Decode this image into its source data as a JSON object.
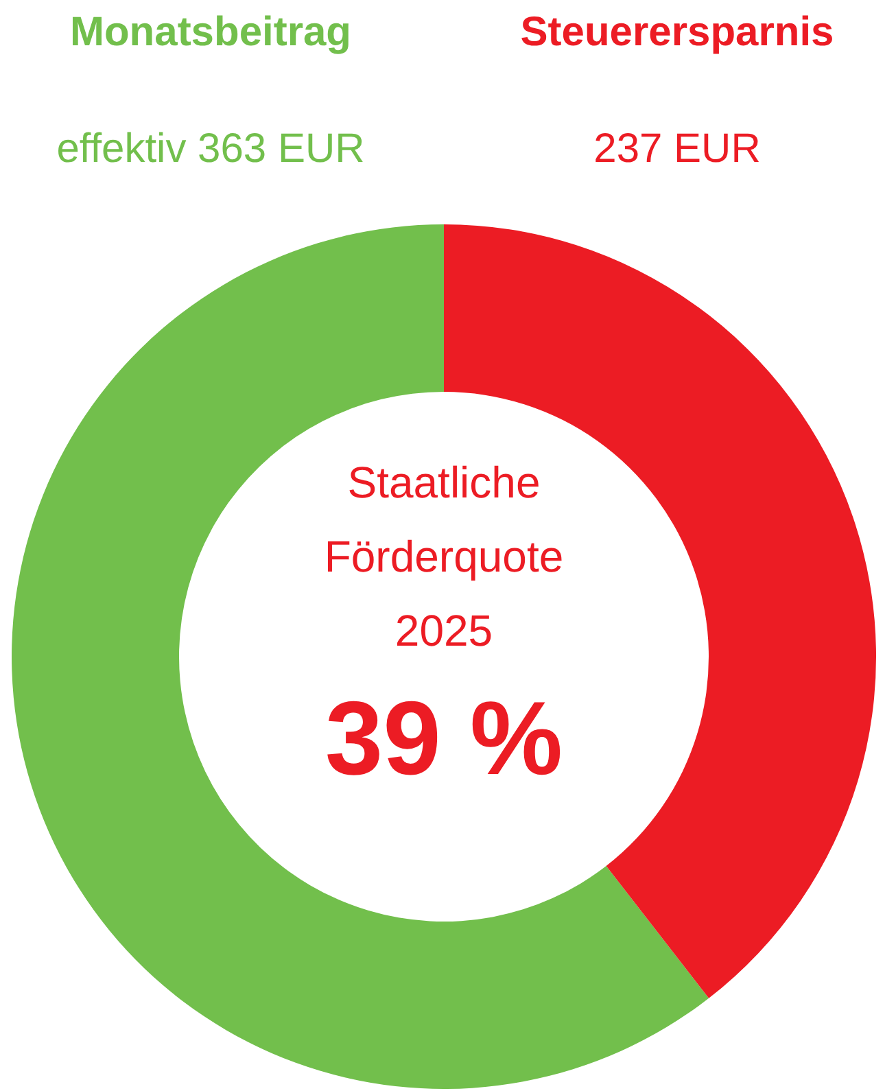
{
  "chart_data": {
    "type": "donut",
    "categories": [
      "Monatsbeitrag",
      "Steuerersparnis"
    ],
    "values": [
      363,
      237
    ],
    "colors": [
      "#72bf4c",
      "#ec1c24"
    ],
    "value_labels": [
      "effektiv 363 EUR",
      "237 EUR"
    ],
    "annotations": [
      "Staatliche\nFörderquote\n2025",
      "39 %"
    ]
  }
}
